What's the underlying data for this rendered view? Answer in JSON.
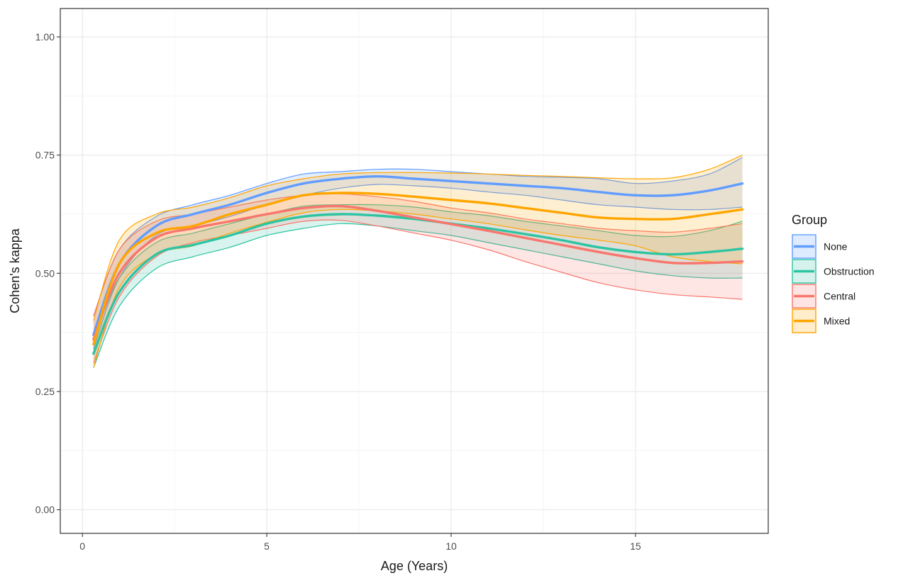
{
  "chart_data": {
    "type": "line",
    "title": "",
    "xlabel": "Age (Years)",
    "ylabel": "Cohen's kappa",
    "xlim": [
      -0.6,
      18.6
    ],
    "ylim": [
      -0.05,
      1.06
    ],
    "x_ticks": [
      0,
      5,
      10,
      15
    ],
    "x_tick_labels": [
      "0",
      "5",
      "10",
      "15"
    ],
    "y_ticks": [
      0.0,
      0.25,
      0.5,
      0.75,
      1.0
    ],
    "y_tick_labels": [
      "0.00",
      "0.25",
      "0.50",
      "0.75",
      "1.00"
    ],
    "grid": true,
    "legend": {
      "title": "Group",
      "placement": "right"
    },
    "x": [
      0.3,
      1,
      2,
      3,
      4,
      5,
      6,
      7,
      8,
      9,
      10,
      11,
      12,
      13,
      14,
      15,
      16,
      17,
      17.9
    ],
    "series": [
      {
        "name": "None",
        "color": "#619CFF",
        "values": [
          0.37,
          0.52,
          0.6,
          0.625,
          0.645,
          0.67,
          0.69,
          0.7,
          0.705,
          0.7,
          0.695,
          0.69,
          0.685,
          0.68,
          0.672,
          0.665,
          0.665,
          0.675,
          0.69
        ],
        "lower": [
          0.34,
          0.49,
          0.58,
          0.6,
          0.62,
          0.645,
          0.665,
          0.68,
          0.688,
          0.685,
          0.68,
          0.672,
          0.665,
          0.655,
          0.645,
          0.64,
          0.635,
          0.635,
          0.64
        ],
        "upper": [
          0.41,
          0.55,
          0.62,
          0.645,
          0.665,
          0.69,
          0.71,
          0.715,
          0.72,
          0.72,
          0.715,
          0.71,
          0.705,
          0.703,
          0.7,
          0.69,
          0.695,
          0.71,
          0.745
        ]
      },
      {
        "name": "Obstruction",
        "color": "#2EC4A2",
        "values": [
          0.33,
          0.46,
          0.54,
          0.56,
          0.58,
          0.605,
          0.62,
          0.625,
          0.622,
          0.615,
          0.605,
          0.595,
          0.583,
          0.57,
          0.555,
          0.545,
          0.54,
          0.545,
          0.552
        ],
        "lower": [
          0.3,
          0.43,
          0.51,
          0.535,
          0.555,
          0.58,
          0.595,
          0.605,
          0.6,
          0.59,
          0.58,
          0.565,
          0.55,
          0.535,
          0.52,
          0.505,
          0.495,
          0.49,
          0.49
        ],
        "upper": [
          0.36,
          0.49,
          0.565,
          0.585,
          0.605,
          0.625,
          0.642,
          0.645,
          0.645,
          0.64,
          0.63,
          0.622,
          0.61,
          0.6,
          0.59,
          0.58,
          0.578,
          0.59,
          0.61
        ]
      },
      {
        "name": "Central",
        "color": "#F8766D",
        "values": [
          0.36,
          0.5,
          0.575,
          0.595,
          0.61,
          0.625,
          0.638,
          0.642,
          0.632,
          0.618,
          0.604,
          0.59,
          0.575,
          0.56,
          0.545,
          0.532,
          0.522,
          0.522,
          0.525
        ],
        "lower": [
          0.31,
          0.45,
          0.535,
          0.565,
          0.58,
          0.595,
          0.61,
          0.612,
          0.6,
          0.585,
          0.57,
          0.55,
          0.525,
          0.502,
          0.48,
          0.465,
          0.455,
          0.45,
          0.445
        ],
        "upper": [
          0.41,
          0.55,
          0.61,
          0.625,
          0.64,
          0.655,
          0.665,
          0.668,
          0.662,
          0.652,
          0.638,
          0.628,
          0.615,
          0.605,
          0.595,
          0.59,
          0.587,
          0.595,
          0.605
        ]
      },
      {
        "name": "Mixed",
        "color": "#FFA500",
        "values": [
          0.35,
          0.52,
          0.585,
          0.6,
          0.625,
          0.645,
          0.665,
          0.67,
          0.668,
          0.662,
          0.655,
          0.648,
          0.638,
          0.628,
          0.618,
          0.615,
          0.615,
          0.625,
          0.635
        ],
        "lower": [
          0.3,
          0.47,
          0.54,
          0.558,
          0.585,
          0.608,
          0.628,
          0.635,
          0.632,
          0.625,
          0.615,
          0.605,
          0.592,
          0.58,
          0.57,
          0.558,
          0.535,
          0.525,
          0.52
        ],
        "upper": [
          0.4,
          0.57,
          0.625,
          0.64,
          0.66,
          0.685,
          0.7,
          0.71,
          0.713,
          0.713,
          0.712,
          0.71,
          0.707,
          0.705,
          0.702,
          0.7,
          0.702,
          0.72,
          0.75
        ]
      }
    ]
  }
}
